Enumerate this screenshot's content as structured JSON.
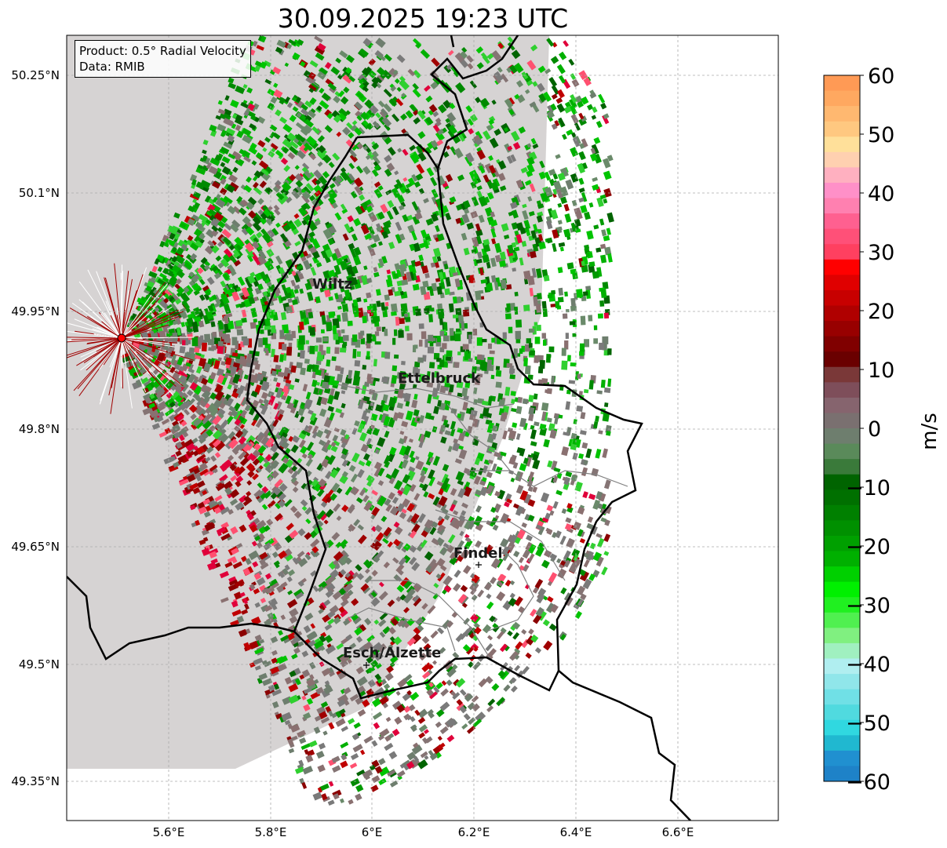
{
  "title": "30.09.2025 19:23 UTC",
  "info": {
    "product": "Product: 0.5° Radial Velocity",
    "source": "Data: RMIB"
  },
  "axes": {
    "lon_ticks": [
      "5.6°E",
      "5.8°E",
      "6°E",
      "6.2°E",
      "6.4°E",
      "6.6°E"
    ],
    "lat_ticks": [
      "50.25°N",
      "50.1°N",
      "49.95°N",
      "49.8°N",
      "49.65°N",
      "49.5°N",
      "49.35°N"
    ]
  },
  "cities": {
    "wiltz": "Wiltz",
    "ettelbruck": "Ettelbruck",
    "findel": "Findel",
    "esch": "Esch/Alzette"
  },
  "colorbar": {
    "label": "m/s",
    "ticks": [
      "60",
      "50",
      "40",
      "30",
      "20",
      "10",
      "0",
      "−10",
      "−20",
      "−30",
      "−40",
      "−50",
      "−60"
    ],
    "min": -60,
    "max": 60
  },
  "colors": {
    "radar_site": "#ff0000",
    "border": "#000000",
    "canton_line": "#808080"
  }
}
